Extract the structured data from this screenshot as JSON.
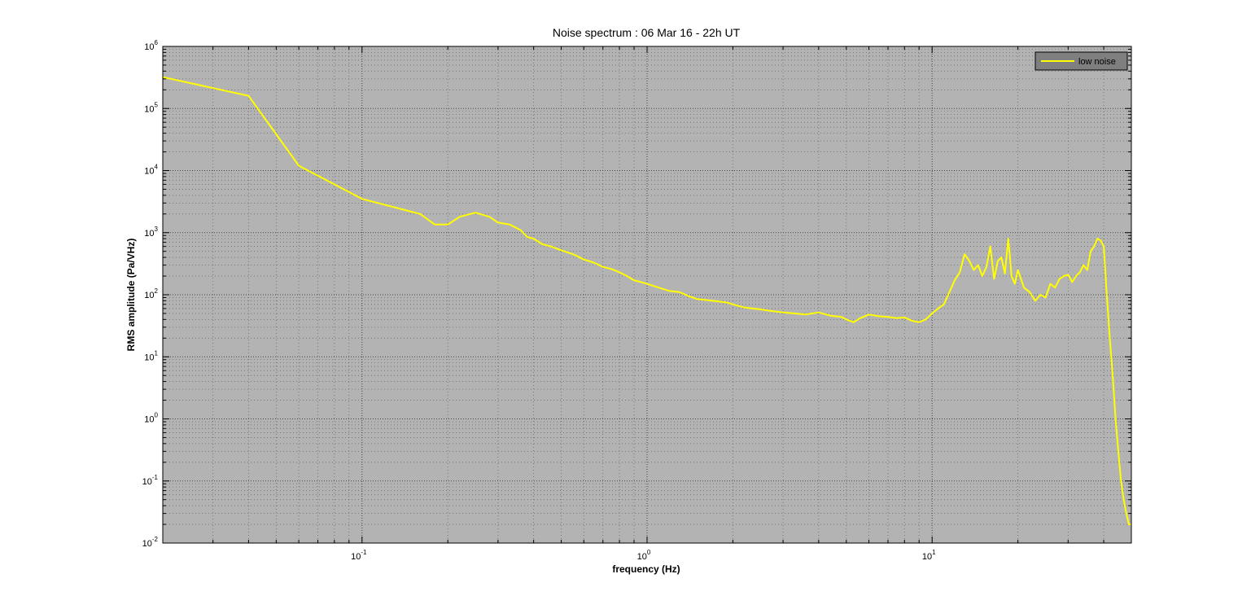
{
  "chart_data": {
    "type": "line",
    "title": "Noise spectrum : 06 Mar 16 - 22h UT",
    "xlabel": "frequency (Hz)",
    "ylabel": "RMS amplitude (Pa/VHz)",
    "x_scale": "log",
    "y_scale": "log",
    "xlim": [
      0.02,
      50
    ],
    "ylim": [
      0.01,
      1000000
    ],
    "x_ticks": [
      {
        "value": 0.1,
        "base": "10",
        "exp": "-1"
      },
      {
        "value": 1,
        "base": "10",
        "exp": "0"
      },
      {
        "value": 10,
        "base": "10",
        "exp": "1"
      }
    ],
    "y_ticks": [
      {
        "value": 0.01,
        "base": "10",
        "exp": "-2"
      },
      {
        "value": 0.1,
        "base": "10",
        "exp": "-1"
      },
      {
        "value": 1,
        "base": "10",
        "exp": "0"
      },
      {
        "value": 10,
        "base": "10",
        "exp": "1"
      },
      {
        "value": 100,
        "base": "10",
        "exp": "2"
      },
      {
        "value": 1000,
        "base": "10",
        "exp": "3"
      },
      {
        "value": 10000,
        "base": "10",
        "exp": "4"
      },
      {
        "value": 100000,
        "base": "10",
        "exp": "5"
      },
      {
        "value": 1000000,
        "base": "10",
        "exp": "6"
      }
    ],
    "grid": true,
    "legend_position": "top-right",
    "colors": {
      "plot_background": "#b3b3b3",
      "line": "#ffff00",
      "grid": "#3a3a3a",
      "legend_background": "#7f7f7f"
    },
    "series": [
      {
        "name": "low noise",
        "x": [
          0.02,
          0.04,
          0.06,
          0.1,
          0.16,
          0.18,
          0.2,
          0.22,
          0.25,
          0.28,
          0.3,
          0.33,
          0.36,
          0.38,
          0.4,
          0.43,
          0.46,
          0.5,
          0.55,
          0.6,
          0.65,
          0.7,
          0.75,
          0.8,
          0.85,
          0.9,
          0.95,
          1.0,
          1.1,
          1.2,
          1.3,
          1.4,
          1.5,
          1.7,
          1.9,
          2.0,
          2.2,
          2.5,
          2.7,
          3.0,
          3.3,
          3.6,
          4.0,
          4.4,
          4.8,
          5.0,
          5.3,
          5.6,
          6.0,
          6.5,
          7.0,
          7.5,
          8.0,
          8.5,
          9.0,
          9.5,
          10.0,
          10.5,
          11.0,
          11.5,
          12.0,
          12.5,
          13.0,
          13.5,
          14.0,
          14.5,
          15.0,
          15.5,
          16.0,
          16.5,
          17.0,
          17.5,
          18.0,
          18.5,
          19.0,
          19.5,
          20.0,
          21.0,
          22.0,
          23.0,
          24.0,
          25.0,
          26.0,
          27.0,
          28.0,
          29.0,
          30.0,
          31.0,
          32.0,
          33.0,
          34.0,
          35.0,
          36.0,
          37.0,
          38.0,
          39.0,
          40.0,
          41.0,
          42.0,
          43.0,
          44.0,
          45.0,
          46.0,
          47.0,
          48.0,
          49.0,
          50.0
        ],
        "values": [
          320000,
          160000,
          12000,
          3500,
          2000,
          1350,
          1350,
          1800,
          2100,
          1800,
          1450,
          1350,
          1100,
          850,
          800,
          650,
          600,
          520,
          450,
          370,
          330,
          280,
          260,
          230,
          200,
          170,
          160,
          150,
          130,
          115,
          110,
          95,
          85,
          80,
          75,
          70,
          62,
          58,
          55,
          52,
          50,
          48,
          52,
          46,
          44,
          40,
          36,
          42,
          48,
          45,
          44,
          42,
          43,
          38,
          36,
          40,
          50,
          60,
          70,
          110,
          170,
          230,
          450,
          350,
          250,
          300,
          200,
          280,
          600,
          180,
          350,
          400,
          220,
          800,
          200,
          150,
          250,
          130,
          110,
          80,
          100,
          90,
          150,
          130,
          180,
          200,
          210,
          160,
          200,
          230,
          300,
          250,
          500,
          600,
          800,
          750,
          600,
          100,
          20,
          5,
          1,
          0.3,
          0.1,
          0.05,
          0.03,
          0.02,
          0.02
        ]
      }
    ]
  }
}
